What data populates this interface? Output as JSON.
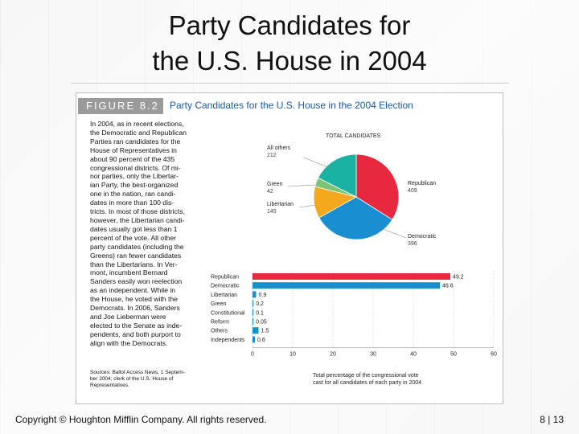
{
  "slide": {
    "title_line1": "Party Candidates for",
    "title_line2": "the U.S. House in 2004",
    "copyright": "Copyright © Houghton Mifflin Company. All rights reserved.",
    "page": "8 | 13"
  },
  "figure": {
    "number": "FIGURE 8.2",
    "title": "Party Candidates for the U.S. House in the 2004 Election",
    "text": "In 2004, as in recent elections,\nthe Democratic and Republican\nParties ran candidates for the\nHouse of Representatives in\nabout 90 percent of the 435\ncongressional districts. Of mi-\nnor parties, only the Libertar-\nian Party, the best-organized\none in the nation, ran candi-\ndates in more than 100 dis-\ntricts. In most of those districts,\nhowever, the Libertarian candi-\ndates usually got less than 1\npercent of the vote. All other\nparty candidates (including the\nGreens) ran fewer candidates\nthan the Libertarians. In Ver-\nmont, incumbent Bernard\nSanders easily won reelection\nas an independent. While in\nthe House, he voted with the\nDemocrats. In 2006, Sanders\nand Joe Lieberman were\nelected to the Senate as inde-\npendents, and both purport to\nalign with the Democrats.",
    "source": "Sources: Ballot Access News, 1 Septem-\nber 2004; clerk of the U.S. House of\nRepresentatives."
  },
  "colors": {
    "republican": "#e8283f",
    "democratic": "#1a8fd0",
    "libertarian": "#f4a81d",
    "green": "#7cc576",
    "others": "#1ab3a3",
    "bar_small": "#1a8fd0"
  },
  "chart_data": [
    {
      "type": "pie",
      "title": "TOTAL CANDIDATES",
      "slices": [
        {
          "label": "Republican",
          "value": 409,
          "color": "#e8283f"
        },
        {
          "label": "Democratic",
          "value": 396,
          "color": "#1a8fd0"
        },
        {
          "label": "Libertarian",
          "value": 145,
          "color": "#f4a81d"
        },
        {
          "label": "Green",
          "value": 42,
          "color": "#7cc576"
        },
        {
          "label": "All others",
          "value": 212,
          "color": "#1ab3a3"
        }
      ]
    },
    {
      "type": "bar",
      "orientation": "horizontal",
      "categories": [
        "Republican",
        "Democratic",
        "Libertarian",
        "Green",
        "Constitutional",
        "Reform",
        "Others",
        "Independents"
      ],
      "values": [
        49.2,
        46.6,
        0.9,
        0.2,
        0.1,
        0.05,
        1.5,
        0.6
      ],
      "value_labels": [
        "49.2",
        "46.6",
        "0.9",
        "0.2",
        "0.1",
        "0.05",
        "1.5",
        "0.6"
      ],
      "xlim": [
        0,
        60
      ],
      "xticks": [
        "0",
        "10",
        "20",
        "30",
        "40",
        "50",
        "60"
      ],
      "xlabel": "Total percentage of the congressional vote\ncast for all candidates of each party in 2004",
      "grid": true
    }
  ]
}
